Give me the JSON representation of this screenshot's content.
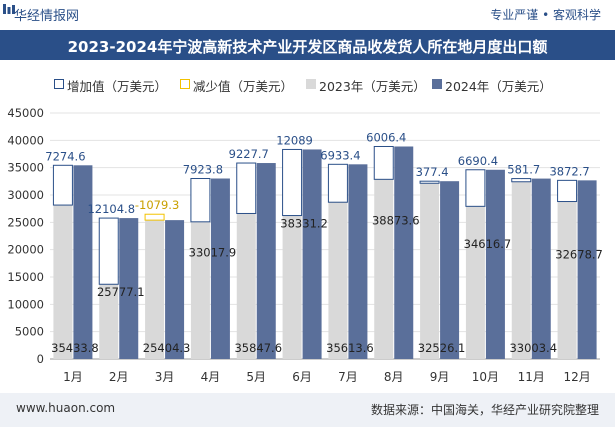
{
  "header": {
    "brand": "华经情报网",
    "slogan": "专业严谨 • 客观科学"
  },
  "footer": {
    "website": "www.huaon.com",
    "source": "数据来源：中国海关，华经产业研究院整理"
  },
  "colors": {
    "increase": "#2a4f88",
    "decrease": "#f2c200",
    "y2023": "#d9d9d9",
    "y2024": "#5a6f9a",
    "header": "#2a4f88"
  },
  "chart_data": {
    "type": "bar",
    "title": "2023-2024年宁波高新技术产业开发区商品收发货人所在地月度出口额",
    "categories": [
      "1月",
      "2月",
      "3月",
      "4月",
      "5月",
      "6月",
      "7月",
      "8月",
      "9月",
      "10月",
      "11月",
      "12月"
    ],
    "series": [
      {
        "name": "增加值（万美元）",
        "values": [
          7274.6,
          12104.8,
          null,
          7923.8,
          9227.7,
          12089,
          6933.4,
          6006.4,
          377.4,
          6690.4,
          581.7,
          3872.7
        ]
      },
      {
        "name": "减少值（万美元）",
        "values": [
          null,
          null,
          -1079.3,
          null,
          null,
          null,
          null,
          null,
          null,
          null,
          null,
          null
        ]
      },
      {
        "name": "2023年（万美元）",
        "values": [
          28159.2,
          13672.3,
          26483.6,
          25094.1,
          26619.9,
          26242.2,
          28680.2,
          32867.2,
          32148.8,
          27926.3,
          32421.7,
          28806.0
        ]
      },
      {
        "name": "2024年（万美元）",
        "values": [
          35433.8,
          25777.1,
          25404.3,
          33017.9,
          35847.6,
          38331.2,
          35613.6,
          38873.6,
          32526.1,
          34616.7,
          33003.4,
          32678.7
        ]
      }
    ],
    "value_labels": {
      "change": [
        "7274.6",
        "12104.8",
        "-1079.3",
        "7923.8",
        "9227.7",
        "12089",
        "6933.4",
        "6006.4",
        "377.4",
        "6690.4",
        "581.7",
        "3872.7"
      ],
      "y2024": [
        "35433.8",
        "25777.1",
        "25404.3",
        "33017.9",
        "35847.6",
        "38331.2",
        "35613.6",
        "38873.6",
        "32526.1",
        "34616.7",
        "33003.4",
        "32678.7"
      ]
    },
    "yticks": [
      "0",
      "5000",
      "10000",
      "15000",
      "20000",
      "25000",
      "30000",
      "35000",
      "40000",
      "45000"
    ],
    "ylim": [
      0,
      45000
    ],
    "grid": true,
    "legend_position": "top-left"
  }
}
